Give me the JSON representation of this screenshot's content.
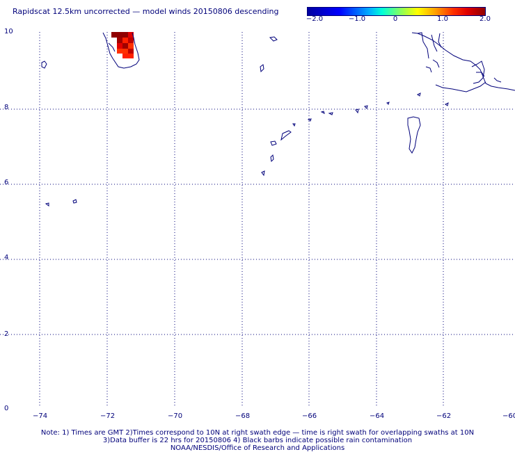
{
  "title": "Rapidscat 12.5km uncorrected — model winds 20150806 descending",
  "colorbar": {
    "ticks": [
      "−2.0",
      "−1.0",
      "0",
      "1.0",
      "2.0"
    ],
    "tick_values": [
      -2.0,
      -1.0,
      0,
      1.0,
      2.0
    ]
  },
  "map": {
    "lon_range": [
      -75,
      -60
    ],
    "lat_range": [
      0,
      10
    ],
    "lon_ticks": [
      "−74",
      "−72",
      "−70",
      "−68",
      "−66",
      "−64",
      "−62",
      "−60"
    ],
    "lon_values": [
      -74,
      -72,
      -70,
      -68,
      -66,
      -64,
      -62,
      -60
    ],
    "lat_ticks": [
      "0",
      "2",
      "4",
      "6",
      "8",
      "10"
    ],
    "lat_values": [
      0,
      2,
      4,
      6,
      8,
      10
    ],
    "coast_color": "#00007a",
    "grid": "dotted"
  },
  "notes": {
    "line1": "Note: 1) Times are GMT 2)Times correspond to 10N at right swath edge — time is right swath for overlapping swaths at 10N",
    "line2": "3)Data buffer is 22 hrs for 20150806 4) Black barbs indicate possible rain contamination",
    "line3": "NOAA/NESDIS/Office of Research and Applications"
  }
}
